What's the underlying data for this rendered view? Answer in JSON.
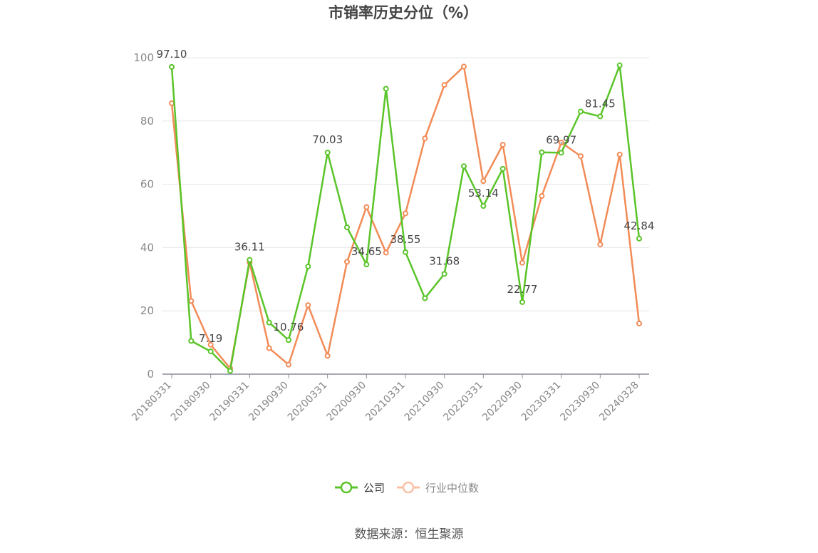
{
  "chart_data": {
    "type": "line",
    "title": "市销率历史分位（%）",
    "source": "数据来源：恒生聚源",
    "ylim": [
      0,
      100
    ],
    "yticks": [
      0,
      20,
      40,
      60,
      80,
      100
    ],
    "grid": true,
    "legend_position": "bottom",
    "x": [
      "20180331",
      "20180630",
      "20180930",
      "20181231",
      "20190331",
      "20190630",
      "20190930",
      "20191231",
      "20200331",
      "20200630",
      "20200930",
      "20201231",
      "20210331",
      "20210630",
      "20210930",
      "20211231",
      "20220331",
      "20220630",
      "20220930",
      "20221231",
      "20230331",
      "20230630",
      "20230930",
      "20231231",
      "20240328"
    ],
    "xtick_labels": [
      "20180331",
      "20180930",
      "20190331",
      "20190930",
      "20200331",
      "20200930",
      "20210331",
      "20210930",
      "20220331",
      "20220930",
      "20230331",
      "20230930",
      "20240328"
    ],
    "series": [
      {
        "name": "公司",
        "color": "#5ac429",
        "values": [
          97.1,
          10.5,
          7.19,
          1.0,
          36.11,
          16.3,
          10.76,
          34.0,
          70.03,
          46.4,
          34.65,
          90.2,
          38.55,
          24.0,
          31.68,
          65.7,
          53.14,
          64.9,
          22.77,
          70.1,
          69.97,
          83.0,
          81.45,
          97.6,
          42.84
        ],
        "labels": {
          "0": "97.10",
          "2": "7.19",
          "4": "36.11",
          "6": "10.76",
          "8": "70.03",
          "10": "34.65",
          "12": "38.55",
          "14": "31.68",
          "16": "53.14",
          "18": "22.77",
          "20": "69.97",
          "22": "81.45",
          "24": "42.84"
        }
      },
      {
        "name": "行业中位数",
        "color": "#f28b57",
        "legend_color": "#f9c1a6",
        "values": [
          85.6,
          23.1,
          9.3,
          1.8,
          35.3,
          8.2,
          3.0,
          21.8,
          5.8,
          35.5,
          52.8,
          38.4,
          50.8,
          74.5,
          91.4,
          97.2,
          61.0,
          72.5,
          35.2,
          56.3,
          73.2,
          68.9,
          41.0,
          69.4,
          16.0
        ]
      }
    ]
  }
}
